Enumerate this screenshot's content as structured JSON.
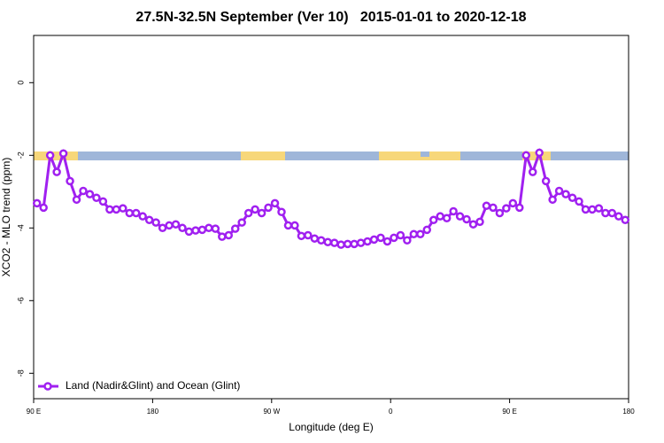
{
  "chart_data": {
    "type": "line",
    "title": "27.5N-32.5N September (Ver 10)   2015-01-01 to 2020-12-18",
    "x_label": "Longitude (deg E)",
    "y_label": "XCO2 - MLO trend (ppm)",
    "xlim": [
      90,
      540
    ],
    "ylim": [
      -8.7,
      1.3
    ],
    "xticks": [
      {
        "value": 90,
        "label": "90 E"
      },
      {
        "value": 180,
        "label": "180"
      },
      {
        "value": 270,
        "label": "90 W"
      },
      {
        "value": 360,
        "label": "0"
      },
      {
        "value": 450,
        "label": "90 E"
      },
      {
        "value": 540,
        "label": "180"
      }
    ],
    "yticks": [
      0,
      -2,
      -4,
      -6,
      -8
    ],
    "legend": "bottom-left",
    "x": [
      92.5,
      97.5,
      102.5,
      107.5,
      112.5,
      117.5,
      122.5,
      127.5,
      132.5,
      137.5,
      142.5,
      147.5,
      152.5,
      157.5,
      162.5,
      167.5,
      172.5,
      177.5,
      182.5,
      187.5,
      192.5,
      197.5,
      202.5,
      207.5,
      212.5,
      217.5,
      222.5,
      227.5,
      232.5,
      237.5,
      242.5,
      247.5,
      252.5,
      257.5,
      262.5,
      267.5,
      272.5,
      277.5,
      282.5,
      287.5,
      292.5,
      297.5,
      302.5,
      307.5,
      312.5,
      317.5,
      322.5,
      327.5,
      332.5,
      337.5,
      342.5,
      347.5,
      352.5,
      357.5,
      362.5,
      367.5,
      372.5,
      377.5,
      382.5,
      387.5,
      392.5,
      397.5,
      402.5,
      407.5,
      412.5,
      417.5,
      422.5,
      427.5,
      432.5,
      437.5,
      442.5,
      447.5,
      452.5,
      457.5,
      462.5,
      467.5,
      472.5,
      477.5,
      482.5,
      487.5,
      492.5,
      497.5,
      502.5,
      507.5,
      512.5,
      517.5,
      522.5,
      527.5,
      532.5,
      537.5
    ],
    "series": [
      {
        "name": "Land (Nadir&Glint) and Ocean (Glint)",
        "color": "#a020f0",
        "values": [
          -3.32,
          -3.44,
          -2.0,
          -2.46,
          -1.95,
          -2.71,
          -3.22,
          -2.98,
          -3.07,
          -3.17,
          -3.27,
          -3.49,
          -3.49,
          -3.46,
          -3.59,
          -3.59,
          -3.68,
          -3.78,
          -3.85,
          -4.0,
          -3.93,
          -3.9,
          -4.0,
          -4.1,
          -4.07,
          -4.05,
          -4.0,
          -4.02,
          -4.24,
          -4.2,
          -4.02,
          -3.85,
          -3.59,
          -3.49,
          -3.59,
          -3.44,
          -3.32,
          -3.56,
          -3.93,
          -3.93,
          -4.22,
          -4.2,
          -4.29,
          -4.34,
          -4.39,
          -4.41,
          -4.46,
          -4.44,
          -4.44,
          -4.41,
          -4.37,
          -4.32,
          -4.27,
          -4.37,
          -4.27,
          -4.2,
          -4.34,
          -4.17,
          -4.17,
          -4.05,
          -3.78,
          -3.68,
          -3.73,
          -3.54,
          -3.68,
          -3.76,
          -3.9,
          -3.83,
          -3.39,
          -3.44,
          -3.59,
          -3.46,
          -3.32,
          -3.44,
          -2.0,
          -2.46,
          -1.93,
          -2.71,
          -3.22,
          -2.98,
          -3.07,
          -3.17,
          -3.27,
          -3.49,
          -3.49,
          -3.46,
          -3.59,
          -3.59,
          -3.68,
          -3.78
        ]
      }
    ]
  }
}
